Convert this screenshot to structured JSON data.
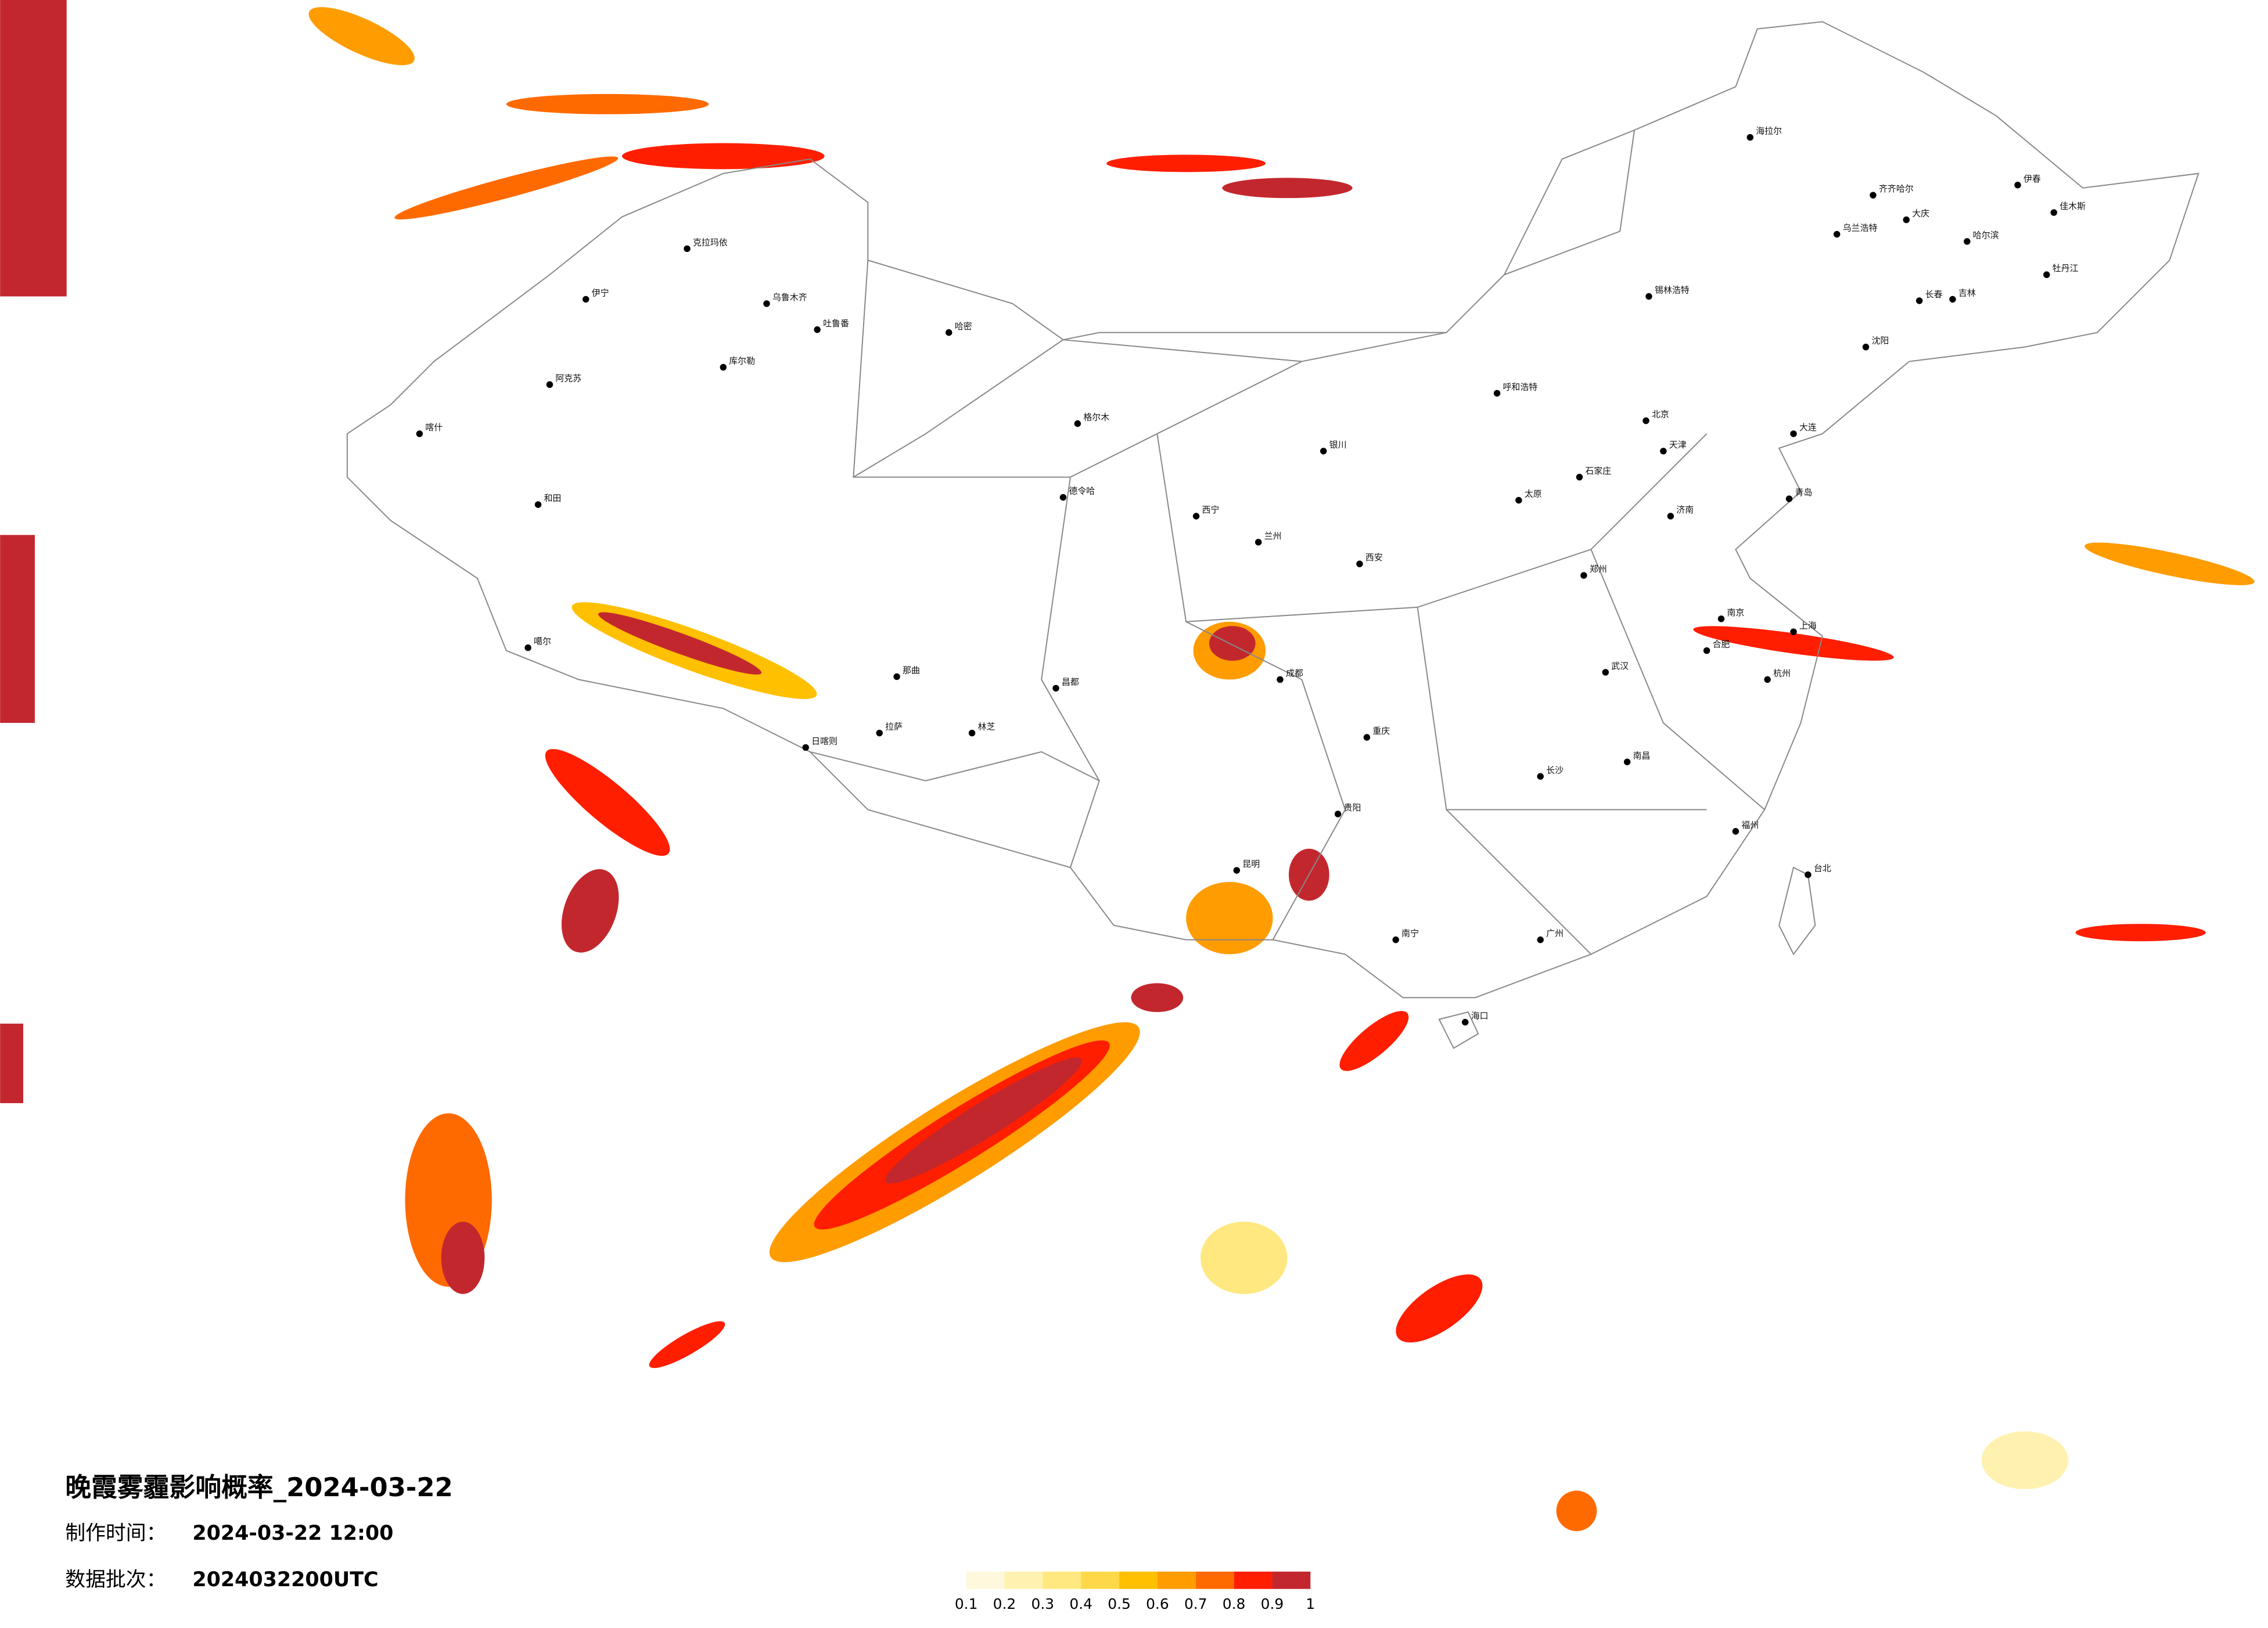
{
  "title": "晚霞雾霾影响概率_2024-03-22",
  "made_label": "制作时间：",
  "made_time": "2024-03-22 12:00",
  "batch_label": "数据批次：",
  "batch": "2024032200UTC",
  "colorbar": {
    "ticks": [
      0.1,
      0.2,
      0.3,
      0.4,
      0.5,
      0.6,
      0.7,
      0.8,
      0.9,
      1
    ],
    "colors": [
      "#fff8dc",
      "#fff2b0",
      "#ffe880",
      "#ffd84a",
      "#ffc000",
      "#ff9c00",
      "#ff6a00",
      "#ff1e00",
      "#c3272e"
    ]
  },
  "cities": [
    "伊宁",
    "克拉玛依",
    "乌鲁木齐",
    "吐鲁番",
    "哈密",
    "库尔勒",
    "阿克苏",
    "喀什",
    "和田",
    "噶尔",
    "日喀则",
    "拉萨",
    "林芝",
    "那曲",
    "昌都",
    "格尔木",
    "德令哈",
    "西宁",
    "兰州",
    "银川",
    "呼和浩特",
    "北京",
    "天津",
    "石家庄",
    "太原",
    "济南",
    "郑州",
    "西安",
    "成都",
    "重庆",
    "贵阳",
    "昆明",
    "南宁",
    "广州",
    "长沙",
    "武汉",
    "南昌",
    "合肥",
    "南京",
    "上海",
    "杭州",
    "福州",
    "台北",
    "海口",
    "哈尔滨",
    "长春",
    "沈阳",
    "大连",
    "青岛",
    "海拉尔",
    "齐齐哈尔",
    "大庆",
    "乌兰浩特",
    "锡林浩特",
    "伊春",
    "佳木斯",
    "牡丹江",
    "吉林"
  ]
}
